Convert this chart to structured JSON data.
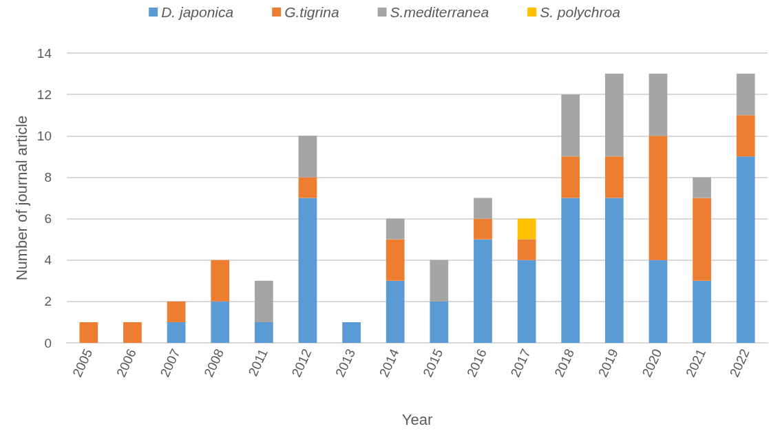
{
  "chart_data": {
    "type": "bar",
    "stacked": true,
    "xlabel": "Year",
    "ylabel": "Number of journal article",
    "categories": [
      "2005",
      "2006",
      "2007",
      "2008",
      "2011",
      "2012",
      "2013",
      "2014",
      "2015",
      "2016",
      "2017",
      "2018",
      "2019",
      "2020",
      "2021",
      "2022"
    ],
    "series": [
      {
        "name": "D. japonica",
        "color": "#5b9bd5",
        "values": [
          null,
          null,
          1,
          2,
          1,
          7,
          1,
          3,
          2,
          5,
          4,
          7,
          7,
          4,
          3,
          9
        ]
      },
      {
        "name": "G.tigrina",
        "color": "#ed7d31",
        "values": [
          1,
          1,
          1,
          2,
          null,
          1,
          null,
          2,
          null,
          1,
          1,
          2,
          2,
          6,
          4,
          2
        ]
      },
      {
        "name": "S.mediterranea",
        "color": "#a5a5a5",
        "values": [
          null,
          null,
          null,
          null,
          2,
          2,
          null,
          1,
          2,
          1,
          null,
          3,
          4,
          3,
          1,
          2
        ]
      },
      {
        "name": "S. polychroa",
        "color": "#ffc000",
        "values": [
          null,
          null,
          null,
          null,
          null,
          null,
          null,
          null,
          null,
          null,
          1,
          null,
          null,
          null,
          null,
          null
        ]
      }
    ],
    "ylim": [
      0,
      14
    ],
    "yticks": [
      0,
      2,
      4,
      6,
      8,
      10,
      12,
      14
    ],
    "grid": "y",
    "legend": "top"
  }
}
